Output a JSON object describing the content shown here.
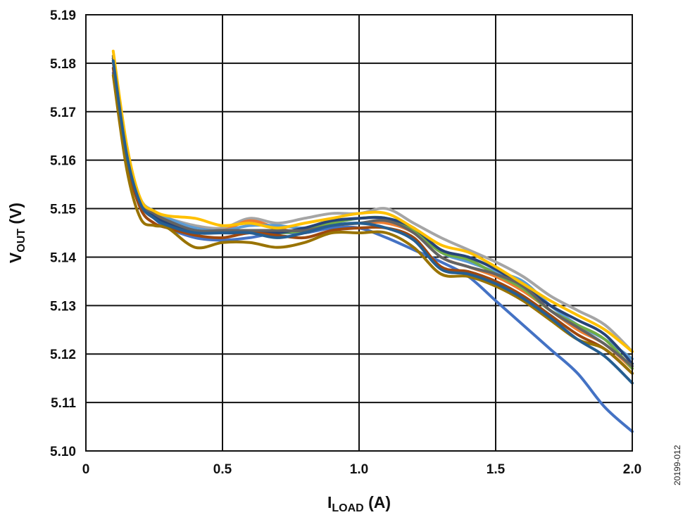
{
  "chart_data": {
    "type": "line",
    "xlabel": {
      "main": "I",
      "sub": "LOAD",
      "unit": " (A)"
    },
    "ylabel": {
      "main": "V",
      "sub": "OUT",
      "unit": " (V)"
    },
    "xlim": [
      0,
      2.0
    ],
    "ylim": [
      5.1,
      5.19
    ],
    "xticks": [
      "0",
      "0.5",
      "1.0",
      "1.5",
      "2.0"
    ],
    "xtick_values": [
      0,
      0.5,
      1.0,
      1.5,
      2.0
    ],
    "yticks": [
      "5.10",
      "5.11",
      "5.12",
      "5.13",
      "5.14",
      "5.15",
      "5.16",
      "5.17",
      "5.18",
      "5.19"
    ],
    "ytick_values": [
      5.1,
      5.11,
      5.12,
      5.13,
      5.14,
      5.15,
      5.16,
      5.17,
      5.18,
      5.19
    ],
    "grid": true,
    "legend": "none",
    "x": [
      0.1,
      0.15,
      0.2,
      0.25,
      0.3,
      0.4,
      0.5,
      0.6,
      0.7,
      0.8,
      0.9,
      1.0,
      1.1,
      1.2,
      1.3,
      1.4,
      1.5,
      1.6,
      1.7,
      1.8,
      1.9,
      2.0
    ],
    "series": [
      {
        "color": "#A5A5A5",
        "values": [
          5.1815,
          5.162,
          5.1515,
          5.149,
          5.148,
          5.1465,
          5.146,
          5.148,
          5.147,
          5.148,
          5.149,
          5.149,
          5.15,
          5.147,
          5.144,
          5.1415,
          5.139,
          5.136,
          5.132,
          5.129,
          5.126,
          5.1205
        ]
      },
      {
        "color": "#ED7D31",
        "values": [
          5.18,
          5.161,
          5.151,
          5.148,
          5.147,
          5.146,
          5.1455,
          5.1475,
          5.146,
          5.145,
          5.1465,
          5.147,
          5.147,
          5.145,
          5.14,
          5.138,
          5.136,
          5.133,
          5.129,
          5.125,
          5.122,
          5.117
        ]
      },
      {
        "color": "#4472C4",
        "values": [
          5.178,
          5.16,
          5.151,
          5.148,
          5.146,
          5.144,
          5.1435,
          5.144,
          5.145,
          5.145,
          5.146,
          5.146,
          5.144,
          5.1415,
          5.139,
          5.136,
          5.131,
          5.126,
          5.121,
          5.116,
          5.109,
          5.104
        ]
      },
      {
        "color": "#5B9BD5",
        "values": [
          5.181,
          5.162,
          5.152,
          5.1495,
          5.148,
          5.146,
          5.1455,
          5.1465,
          5.1465,
          5.146,
          5.147,
          5.148,
          5.148,
          5.146,
          5.141,
          5.139,
          5.137,
          5.135,
          5.13,
          5.126,
          5.123,
          5.119
        ]
      },
      {
        "color": "#70AD47",
        "values": [
          5.1805,
          5.161,
          5.151,
          5.1485,
          5.147,
          5.1455,
          5.145,
          5.1455,
          5.145,
          5.1455,
          5.147,
          5.148,
          5.148,
          5.1455,
          5.141,
          5.1395,
          5.1365,
          5.1335,
          5.129,
          5.126,
          5.123,
          5.117
        ]
      },
      {
        "color": "#264478",
        "values": [
          5.181,
          5.162,
          5.151,
          5.1485,
          5.147,
          5.1455,
          5.145,
          5.145,
          5.145,
          5.146,
          5.1475,
          5.148,
          5.148,
          5.146,
          5.1415,
          5.14,
          5.1375,
          5.134,
          5.13,
          5.127,
          5.124,
          5.118
        ]
      },
      {
        "color": "#9E480E",
        "values": [
          5.179,
          5.16,
          5.15,
          5.147,
          5.146,
          5.1445,
          5.144,
          5.145,
          5.1445,
          5.144,
          5.1455,
          5.146,
          5.146,
          5.144,
          5.138,
          5.137,
          5.135,
          5.132,
          5.128,
          5.124,
          5.121,
          5.116
        ]
      },
      {
        "color": "#636363",
        "values": [
          5.1815,
          5.162,
          5.1515,
          5.149,
          5.1475,
          5.1455,
          5.1455,
          5.1455,
          5.1455,
          5.1455,
          5.1465,
          5.147,
          5.1475,
          5.145,
          5.14,
          5.138,
          5.1365,
          5.134,
          5.129,
          5.1255,
          5.122,
          5.1175
        ]
      },
      {
        "color": "#FFC000",
        "values": [
          5.1825,
          5.163,
          5.152,
          5.1495,
          5.1485,
          5.148,
          5.1465,
          5.147,
          5.146,
          5.147,
          5.148,
          5.149,
          5.149,
          5.146,
          5.1425,
          5.141,
          5.138,
          5.1345,
          5.131,
          5.128,
          5.125,
          5.1205
        ]
      },
      {
        "color": "#997300",
        "values": [
          5.1775,
          5.158,
          5.148,
          5.1465,
          5.146,
          5.142,
          5.143,
          5.143,
          5.142,
          5.143,
          5.145,
          5.145,
          5.145,
          5.142,
          5.1365,
          5.136,
          5.134,
          5.131,
          5.127,
          5.123,
          5.121,
          5.116
        ]
      },
      {
        "color": "#255E91",
        "values": [
          5.1805,
          5.161,
          5.151,
          5.148,
          5.1465,
          5.145,
          5.145,
          5.145,
          5.144,
          5.145,
          5.1465,
          5.147,
          5.146,
          5.1435,
          5.1375,
          5.1365,
          5.1345,
          5.1315,
          5.1275,
          5.123,
          5.1195,
          5.114
        ]
      }
    ]
  },
  "figure_id": "20199-012"
}
